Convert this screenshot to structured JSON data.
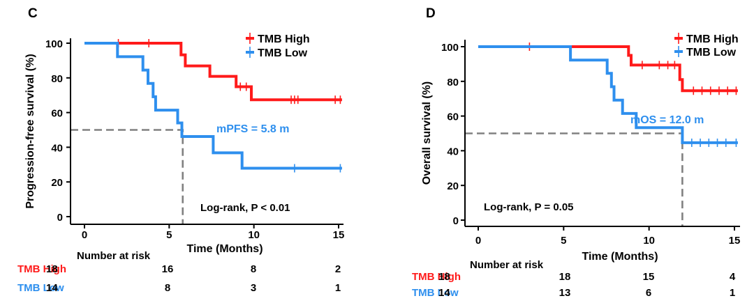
{
  "chart_data": [
    {
      "panel_label": "C",
      "type": "line",
      "subtype": "kaplan-meier",
      "ylabel": "Progression-free survival (%)",
      "xlabel": "Time (Months)",
      "xlim": [
        0,
        15
      ],
      "ylim": [
        0,
        100
      ],
      "xticks": [
        "0",
        "5",
        "10",
        "15"
      ],
      "yticks": [
        "0",
        "20",
        "40",
        "60",
        "80",
        "100"
      ],
      "legend": [
        "TMB High",
        "TMB Low"
      ],
      "legend_position": "top-right",
      "annotation_median": "mPFS = 5.8 m",
      "annotation_test": "Log-rank, P < 0.01",
      "median_x": 5.8,
      "median_y": 50,
      "colors": {
        "high": "#ff1a1a",
        "low": "#2e8fee",
        "ref": "#808080"
      },
      "series": [
        {
          "name": "TMB High",
          "steps": [
            [
              0,
              100
            ],
            [
              5.7,
              100
            ],
            [
              5.7,
              93.3
            ],
            [
              5.95,
              93.3
            ],
            [
              5.95,
              86.9
            ],
            [
              7.4,
              86.9
            ],
            [
              7.4,
              80.9
            ],
            [
              8.95,
              80.9
            ],
            [
              8.95,
              74.9
            ],
            [
              9.85,
              74.9
            ],
            [
              9.85,
              67.4
            ],
            [
              15.2,
              67.4
            ]
          ],
          "censors": [
            [
              2,
              100
            ],
            [
              3.8,
              100
            ],
            [
              9.2,
              74.9
            ],
            [
              9.55,
              74.9
            ],
            [
              12.2,
              67.4
            ],
            [
              12.4,
              67.4
            ],
            [
              12.6,
              67.4
            ],
            [
              14.8,
              67.4
            ],
            [
              15.1,
              67.4
            ]
          ]
        },
        {
          "name": "TMB Low",
          "steps": [
            [
              0,
              100
            ],
            [
              1.95,
              100
            ],
            [
              1.95,
              92.2
            ],
            [
              3.45,
              92.2
            ],
            [
              3.45,
              84.5
            ],
            [
              3.75,
              84.5
            ],
            [
              3.75,
              76.8
            ],
            [
              4.05,
              76.8
            ],
            [
              4.05,
              69.1
            ],
            [
              4.2,
              69.1
            ],
            [
              4.2,
              61.4
            ],
            [
              5.5,
              61.4
            ],
            [
              5.5,
              54
            ],
            [
              5.75,
              54
            ],
            [
              5.75,
              46.2
            ],
            [
              7.6,
              46.2
            ],
            [
              7.6,
              36.8
            ],
            [
              9.3,
              36.8
            ],
            [
              9.3,
              27.9
            ],
            [
              15.2,
              27.9
            ]
          ],
          "censors": [
            [
              12.4,
              27.9
            ],
            [
              15.1,
              27.9
            ]
          ]
        }
      ],
      "risk_table": {
        "title": "Number at risk",
        "rows": [
          {
            "label": "TMB High",
            "values": [
              "18",
              "16",
              "8",
              "2"
            ]
          },
          {
            "label": "TMB Low",
            "values": [
              "14",
              "8",
              "3",
              "1"
            ]
          }
        ]
      }
    },
    {
      "panel_label": "D",
      "type": "line",
      "subtype": "kaplan-meier",
      "ylabel": "Overall survival (%)",
      "xlabel": "Time (Months)",
      "xlim": [
        0,
        15
      ],
      "ylim": [
        0,
        100
      ],
      "xticks": [
        "0",
        "5",
        "10",
        "15"
      ],
      "yticks": [
        "0",
        "20",
        "40",
        "60",
        "80",
        "100"
      ],
      "legend": [
        "TMB High",
        "TMB Low"
      ],
      "legend_position": "top-right",
      "annotation_median": "mOS = 12.0 m",
      "annotation_test": "Log-rank, P = 0.05",
      "median_x": 11.95,
      "median_y": 50,
      "colors": {
        "high": "#ff1a1a",
        "low": "#2e8fee",
        "ref": "#808080"
      },
      "series": [
        {
          "name": "TMB High",
          "steps": [
            [
              0,
              100
            ],
            [
              8.8,
              100
            ],
            [
              8.8,
              95
            ],
            [
              8.95,
              95
            ],
            [
              8.95,
              89.4
            ],
            [
              11.8,
              89.4
            ],
            [
              11.8,
              81
            ],
            [
              11.95,
              81
            ],
            [
              11.95,
              74.6
            ],
            [
              15.2,
              74.6
            ]
          ],
          "censors": [
            [
              3,
              100
            ],
            [
              9.6,
              89.4
            ],
            [
              10.6,
              89.4
            ],
            [
              11.1,
              89.4
            ],
            [
              11.5,
              89.4
            ],
            [
              12.6,
              74.6
            ],
            [
              13.1,
              74.6
            ],
            [
              13.6,
              74.6
            ],
            [
              14.1,
              74.6
            ],
            [
              14.6,
              74.6
            ],
            [
              15.1,
              74.6
            ]
          ]
        },
        {
          "name": "TMB Low",
          "steps": [
            [
              0,
              100
            ],
            [
              5.4,
              100
            ],
            [
              5.4,
              92.3
            ],
            [
              7.55,
              92.3
            ],
            [
              7.55,
              84.6
            ],
            [
              7.8,
              84.6
            ],
            [
              7.8,
              76.9
            ],
            [
              7.95,
              76.9
            ],
            [
              7.95,
              69.2
            ],
            [
              8.45,
              69.2
            ],
            [
              8.45,
              61.5
            ],
            [
              9.25,
              61.5
            ],
            [
              9.25,
              53.3
            ],
            [
              11.95,
              53.3
            ],
            [
              11.95,
              44.6
            ],
            [
              15.2,
              44.6
            ]
          ],
          "censors": [
            [
              12.5,
              44.6
            ],
            [
              13.0,
              44.6
            ],
            [
              13.5,
              44.6
            ],
            [
              14.0,
              44.6
            ],
            [
              14.5,
              44.6
            ],
            [
              15.1,
              44.6
            ]
          ]
        }
      ],
      "risk_table": {
        "title": "Number at risk",
        "rows": [
          {
            "label": "TMB High",
            "values": [
              "18",
              "18",
              "15",
              "4"
            ]
          },
          {
            "label": "TMB Low",
            "values": [
              "14",
              "13",
              "6",
              "1"
            ]
          }
        ]
      }
    }
  ]
}
